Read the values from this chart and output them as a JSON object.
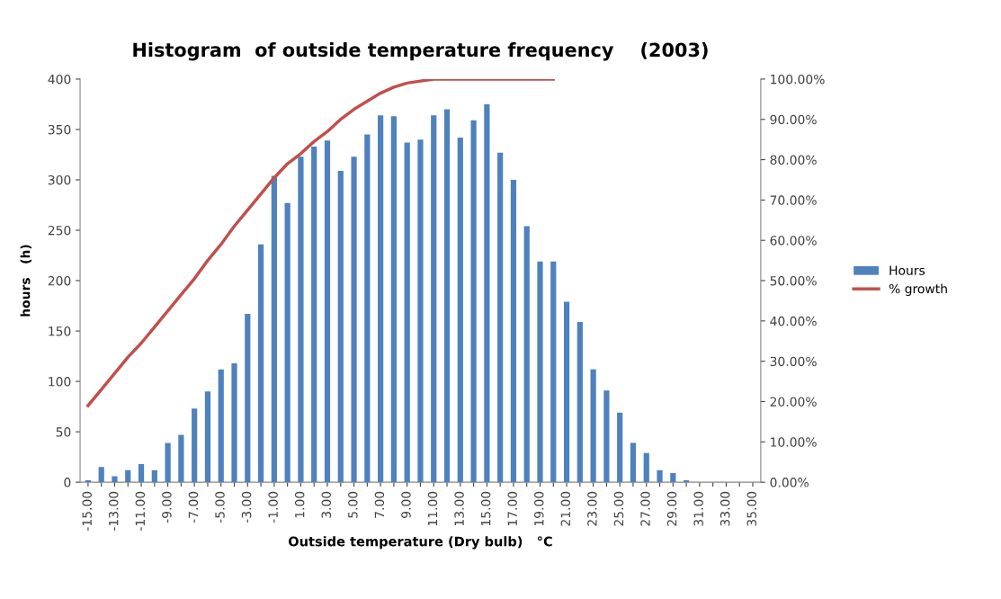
{
  "chart_data": {
    "type": "bar",
    "title": "Histogram  of outside temperature frequency    (2003)",
    "xlabel": "Outside temperature (Dry bulb)   °C",
    "ylabel": "hours   (h)",
    "categories": [
      "-15.00",
      null,
      "-13.00",
      null,
      "-11.00",
      null,
      "-9.00",
      null,
      "-7.00",
      null,
      "-5.00",
      null,
      "-3.00",
      null,
      "-1.00",
      null,
      "1.00",
      null,
      "3.00",
      null,
      "5.00",
      null,
      "7.00",
      null,
      "9.00",
      null,
      "11.00",
      null,
      "13.00",
      null,
      "15.00",
      null,
      "17.00",
      null,
      "19.00",
      null,
      "21.00",
      null,
      "23.00",
      null,
      "25.00",
      null,
      "27.00",
      null,
      "29.00",
      null,
      "31.00",
      null,
      "33.00",
      null,
      "35.00"
    ],
    "series": [
      {
        "name": "Hours",
        "color": "#4f81bd",
        "values": [
          2,
          15,
          6,
          12,
          18,
          12,
          39,
          47,
          73,
          90,
          112,
          118,
          167,
          236,
          304,
          277,
          323,
          333,
          339,
          309,
          323,
          345,
          364,
          363,
          337,
          340,
          364,
          370,
          342,
          359,
          375,
          327,
          300,
          254,
          219,
          219,
          179,
          159,
          112,
          91,
          69,
          39,
          29,
          12,
          9,
          2,
          0,
          0,
          0,
          0,
          0
        ]
      },
      {
        "name": "% growth",
        "type": "line",
        "axis": "y2",
        "color": "#c0504d",
        "values": [
          19,
          23,
          27,
          31,
          34.5,
          38.5,
          42.5,
          46.5,
          50.5,
          55,
          59,
          63.5,
          67.5,
          71.5,
          75.5,
          79,
          81.5,
          84.5,
          87,
          90,
          92.5,
          94.5,
          96.5,
          98,
          99,
          99.5,
          100,
          100,
          100,
          100,
          100,
          100,
          100,
          100,
          100,
          100,
          null,
          null,
          null,
          null,
          null,
          null,
          null,
          null,
          null,
          null,
          null,
          null,
          null,
          null,
          null
        ]
      }
    ],
    "ylim": [
      0,
      400
    ],
    "yticks": [
      0,
      50,
      100,
      150,
      200,
      250,
      300,
      350,
      400
    ],
    "y2lim": [
      0,
      100
    ],
    "y2ticks": [
      {
        "value": 0,
        "label": "0.00%"
      },
      {
        "value": 10,
        "label": "10.00%"
      },
      {
        "value": 20,
        "label": "20.00%"
      },
      {
        "value": 30,
        "label": "30.00%"
      },
      {
        "value": 40,
        "label": "40.00%"
      },
      {
        "value": 50,
        "label": "50.00%"
      },
      {
        "value": 60,
        "label": "60.00%"
      },
      {
        "value": 70,
        "label": "70.00%"
      },
      {
        "value": 80,
        "label": "80.00%"
      },
      {
        "value": 90,
        "label": "90.00%"
      },
      {
        "value": 100,
        "label": "100.00%"
      }
    ],
    "grid": false,
    "legend": "right",
    "marker": "none",
    "line_style": "solid"
  }
}
